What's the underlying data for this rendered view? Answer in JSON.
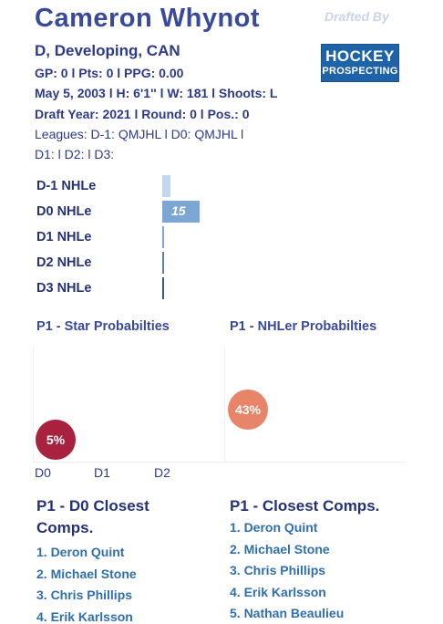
{
  "player": {
    "name": "Cameron Whynot",
    "subtitle": "D, Developing, CAN",
    "stats": "GP: 0 l Pts: 0 l PPG: 0.00",
    "bio": "May 5, 2003 l H: 6'1'' l W: 181 l Shoots: L",
    "draft": "Draft Year: 2021 l Round: 0 l Pos.: 0",
    "leagues": "Leagues: D-1: QMJHL l D0: QMJHL l",
    "leagues2": "D1:  l D2:  l D3:"
  },
  "branding": {
    "drafted_by": "Drafted By",
    "logo_line1": "HOCKEY",
    "logo_line2": "PROSPECTING"
  },
  "nhle": {
    "rows": [
      {
        "label": "D-1 NHLe",
        "value": null,
        "shown": "",
        "fraction": 0.22,
        "color": "#c5d7ee"
      },
      {
        "label": "D0 NHLe",
        "value": 15,
        "shown": "15",
        "fraction": 1.0,
        "color": "#7ea6d3"
      },
      {
        "label": "D1 NHLe",
        "value": null,
        "shown": "",
        "fraction": 0.0,
        "color": "#7ea6d3"
      },
      {
        "label": "D2 NHLe",
        "value": null,
        "shown": "",
        "fraction": 0.0,
        "color": "#5d7fa8"
      },
      {
        "label": "D3 NHLe",
        "value": null,
        "shown": "",
        "fraction": 0.0,
        "color": "#3b587e"
      }
    ]
  },
  "star_prob": {
    "title": "P1 - Star Probabilties",
    "points": [
      {
        "x": "D0",
        "value": "5%",
        "color": "#a8213f"
      }
    ],
    "x_labels": [
      "D0",
      "D1",
      "D2"
    ]
  },
  "nhler_prob": {
    "title": "P1 - NHLer Probabilties",
    "points": [
      {
        "x": "D0",
        "value": "43%",
        "color": "#e8846a"
      }
    ]
  },
  "d0_comps": {
    "title_line1": "P1 - D0 Closest",
    "title_line2": "Comps.",
    "items": [
      "1. Deron Quint",
      "2. Michael Stone",
      "3. Chris Phillips",
      "4. Erik Karlsson"
    ]
  },
  "closest_comps": {
    "title": "P1 - Closest Comps.",
    "items": [
      "1. Deron Quint",
      "2. Michael Stone",
      "3. Chris Phillips",
      "4. Erik Karlsson",
      "5. Nathan Beaulieu"
    ]
  }
}
